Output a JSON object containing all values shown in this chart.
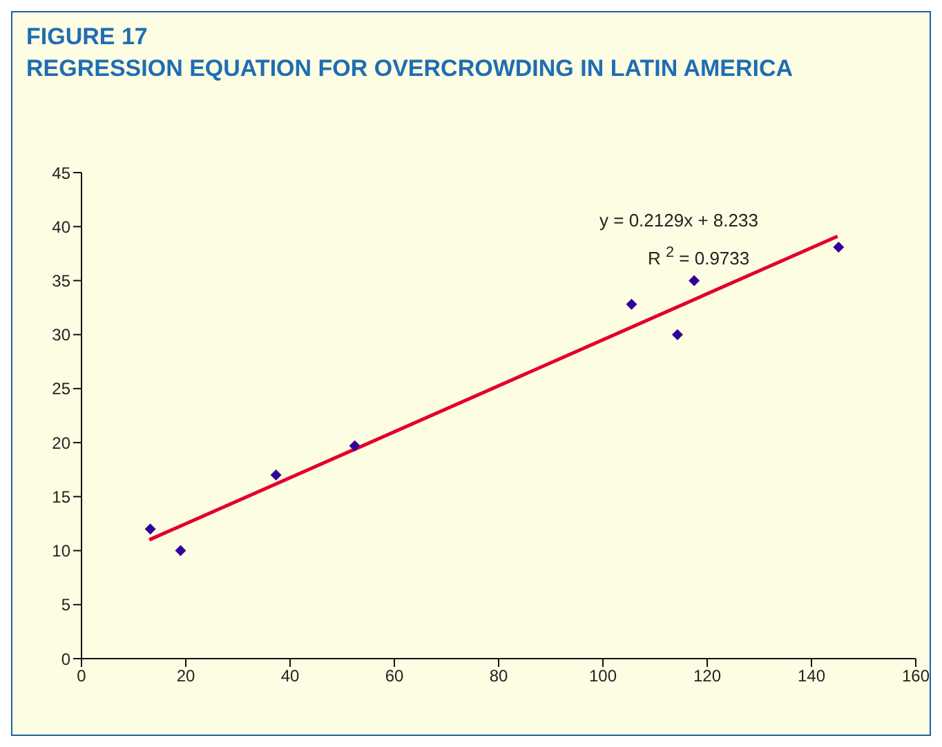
{
  "chart_data": {
    "type": "scatter",
    "title": "FIGURE 17",
    "subtitle": "REGRESSION EQUATION FOR OVERCROWDING IN LATIN AMERICA",
    "annotations": [
      "y = 0.2129x + 8.233",
      "R $^{2}$ = 0.9733"
    ],
    "series": [
      {
        "color": "#330099",
        "marker": "diamond",
        "x": [
          13.2,
          19,
          37.3,
          52.4,
          105.5,
          114.3,
          117.5,
          145.2
        ],
        "values": [
          12.0,
          10.0,
          17.0,
          19.7,
          32.8,
          30.0,
          35.0,
          38.1
        ]
      },
      {
        "type": "line",
        "marker": "none",
        "color": "#e2002a",
        "x": [
          13,
          145
        ],
        "values": [
          11.0,
          39.1
        ]
      }
    ],
    "xlim": [
      0,
      160
    ],
    "xticks": [
      0,
      20,
      40,
      60,
      80,
      100,
      120,
      140,
      160
    ],
    "ylim": [
      0,
      45
    ],
    "yticks": [
      0,
      5,
      10,
      15,
      20,
      25,
      30,
      35,
      40,
      45
    ],
    "grid": false,
    "legend": false
  }
}
